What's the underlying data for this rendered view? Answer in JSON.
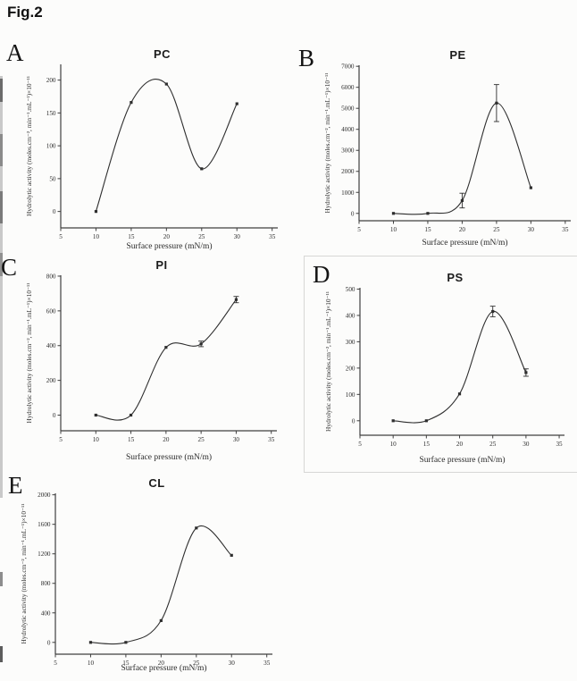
{
  "figure_label": "Fig.2",
  "panels": [
    {
      "letter": "A"
    },
    {
      "letter": "B"
    },
    {
      "letter": "C"
    },
    {
      "letter": "D"
    },
    {
      "letter": "E"
    }
  ],
  "chart_data": [
    {
      "type": "line",
      "panel": "A",
      "title": "PC",
      "xlabel": "Surface pressure (mN/m)",
      "ylabel": "Hydrolytic activity (moles.cm⁻², min⁻¹.mL⁻¹)×10⁻¹¹",
      "x": [
        10,
        15,
        20,
        25,
        30
      ],
      "y": [
        0,
        166,
        194,
        65,
        164
      ],
      "yerr": [
        0,
        0,
        0,
        0,
        0
      ],
      "xlim": [
        5,
        35.8
      ],
      "ylim": [
        -25,
        224
      ],
      "xticks": [
        5,
        10,
        15,
        20,
        25,
        30,
        35
      ],
      "yticks": [
        0,
        50,
        100,
        150,
        200
      ],
      "marker": "square",
      "smooth": true,
      "grid": false,
      "legend": null,
      "line_color": "#2e2e2e",
      "axis_color": "#3f3f3f",
      "text_color": "#2a2a2a"
    },
    {
      "type": "line",
      "panel": "B",
      "title": "PE",
      "xlabel": "Surface pressure (mN/m)",
      "ylabel": "Hydrolytic activity (moles.cm⁻², min⁻¹.mL⁻¹)×10⁻¹¹",
      "x": [
        10,
        15,
        20,
        25,
        30
      ],
      "y": [
        0,
        0,
        610,
        5250,
        1220
      ],
      "yerr": [
        0,
        0,
        350,
        880,
        0
      ],
      "xlim": [
        5,
        35.8
      ],
      "ylim": [
        -350,
        7050
      ],
      "xticks": [
        5,
        10,
        15,
        20,
        25,
        30,
        35
      ],
      "yticks": [
        0,
        1000,
        2000,
        3000,
        4000,
        5000,
        6000,
        7000
      ],
      "marker": "square",
      "smooth": true,
      "grid": false,
      "legend": null,
      "line_color": "#2e2e2e",
      "axis_color": "#3f3f3f",
      "text_color": "#2a2a2a"
    },
    {
      "type": "line",
      "panel": "C",
      "title": "PI",
      "xlabel": "Surface pressure (mN/m)",
      "ylabel": "Hydrolytic activity (moles.cm⁻², min⁻¹.mL⁻¹)×10⁻¹¹",
      "x": [
        10,
        15,
        20,
        25,
        30
      ],
      "y": [
        0,
        0,
        390,
        410,
        665
      ],
      "yerr": [
        0,
        0,
        0,
        16,
        18
      ],
      "xlim": [
        5,
        35.8
      ],
      "ylim": [
        -90,
        805
      ],
      "xticks": [
        5,
        10,
        15,
        20,
        25,
        30,
        35
      ],
      "yticks": [
        0,
        200,
        400,
        600,
        800
      ],
      "marker": "square",
      "smooth": true,
      "grid": false,
      "legend": null,
      "line_color": "#2e2e2e",
      "axis_color": "#3f3f3f",
      "text_color": "#2a2a2a"
    },
    {
      "type": "line",
      "panel": "D",
      "title": "PS",
      "xlabel": "Surface pressure (mN/m)",
      "ylabel": "Hydrolytic activity (moles.cm⁻², min⁻¹.mL⁻¹)×10⁻¹¹",
      "x": [
        10,
        15,
        20,
        25,
        30
      ],
      "y": [
        0,
        0,
        102,
        415,
        183
      ],
      "yerr": [
        0,
        0,
        0,
        20,
        14
      ],
      "xlim": [
        5,
        35.8
      ],
      "ylim": [
        -55,
        505
      ],
      "xticks": [
        5,
        10,
        15,
        20,
        25,
        30,
        35
      ],
      "yticks": [
        0,
        100,
        200,
        300,
        400,
        500
      ],
      "marker": "square",
      "smooth": true,
      "grid": false,
      "legend": null,
      "line_color": "#2e2e2e",
      "axis_color": "#3f3f3f",
      "text_color": "#2a2a2a"
    },
    {
      "type": "line",
      "panel": "E",
      "title": "CL",
      "xlabel": "Surface pressure (mN/m)",
      "ylabel": "Hydrolytic activity (moles.cm⁻², min⁻¹.mL⁻¹)×10⁻¹¹",
      "x": [
        10,
        15,
        20,
        25,
        30
      ],
      "y": [
        0,
        0,
        295,
        1550,
        1180
      ],
      "yerr": [
        0,
        0,
        0,
        0,
        0
      ],
      "xlim": [
        5,
        35.8
      ],
      "ylim": [
        -160,
        2020
      ],
      "xticks": [
        5,
        10,
        15,
        20,
        25,
        30,
        35
      ],
      "yticks": [
        0,
        400,
        800,
        1200,
        1600,
        2000
      ],
      "marker": "square",
      "smooth": true,
      "grid": false,
      "legend": null,
      "line_color": "#2e2e2e",
      "axis_color": "#3f3f3f",
      "text_color": "#2a2a2a"
    }
  ]
}
